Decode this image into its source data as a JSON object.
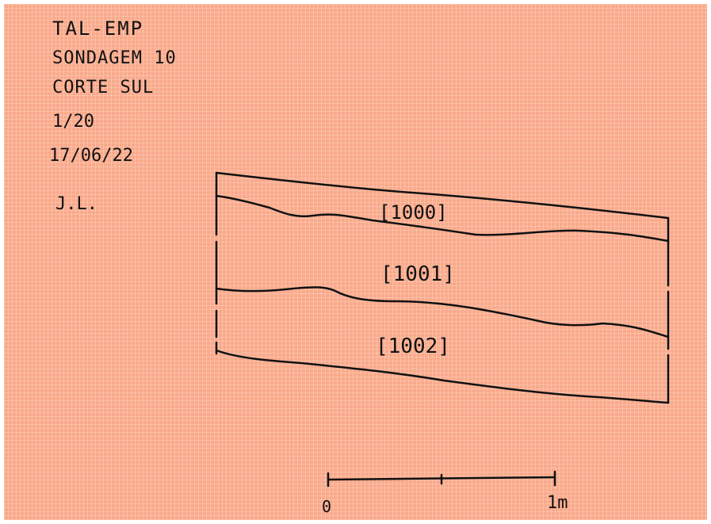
{
  "header": {
    "lines": [
      "TAL-EMP",
      "SONDAGEM 10",
      "CORTE SUL",
      "1/20",
      "17/06/22"
    ],
    "initials": "J.L."
  },
  "layers": [
    {
      "label": "[1000]"
    },
    {
      "label": "[1001]"
    },
    {
      "label": "[1002]"
    }
  ],
  "scale_bar": {
    "start_label": "0",
    "end_label": "1m"
  },
  "colors": {
    "grid_background": "#f9a98a",
    "grid_line": "#fbc7b1",
    "ink": "#111111"
  }
}
